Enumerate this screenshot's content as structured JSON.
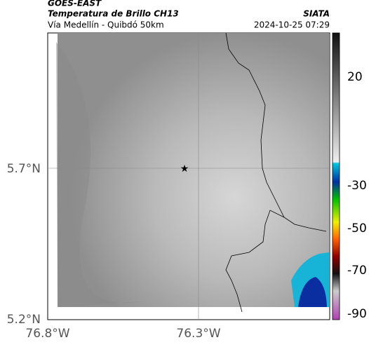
{
  "header": {
    "source": "GOES-EAST",
    "product": "Temperatura de Brillo CH13",
    "location": "Vía Medellín - Quibdó 50km",
    "agency": "SIATA",
    "datetime": "2024-10-25 07:29"
  },
  "map": {
    "lat_labels": [
      "5.7°N",
      "5.2°N"
    ],
    "lon_labels": [
      "76.8°W",
      "76.3°W"
    ]
  },
  "colorbar": {
    "tick_labels": [
      "20",
      "-30",
      "-50",
      "-70",
      "-90"
    ]
  }
}
